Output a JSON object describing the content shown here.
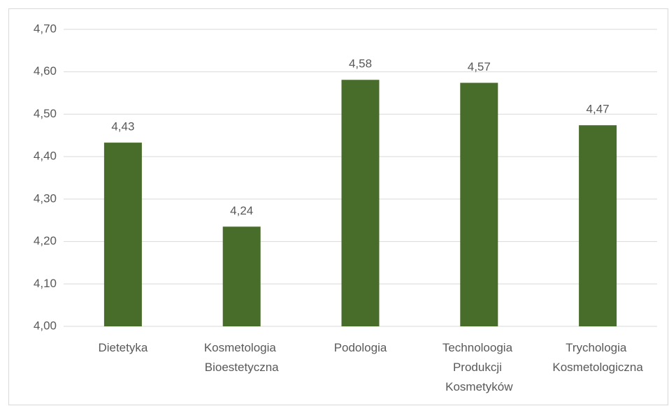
{
  "chart_data": {
    "type": "bar",
    "categories": [
      "Dietetyka",
      "Kosmetologia Bioestetyczna",
      "Podologia",
      "Technoloogia Produkcji Kosmetyków",
      "Trychologia Kosmetologiczna"
    ],
    "values": [
      4.433,
      4.235,
      4.581,
      4.574,
      4.474
    ],
    "value_labels": [
      "4,43",
      "4,24",
      "4,58",
      "4,57",
      "4,47"
    ],
    "color": "#486d2b",
    "ylim": [
      4.0,
      4.7
    ],
    "yticks": [
      {
        "value": 4.0,
        "label": "4,00"
      },
      {
        "value": 4.1,
        "label": "4,10"
      },
      {
        "value": 4.2,
        "label": "4,20"
      },
      {
        "value": 4.3,
        "label": "4,30"
      },
      {
        "value": 4.4,
        "label": "4,40"
      },
      {
        "value": 4.5,
        "label": "4,50"
      },
      {
        "value": 4.6,
        "label": "4,60"
      },
      {
        "value": 4.7,
        "label": "4,70"
      }
    ],
    "grid": true
  }
}
